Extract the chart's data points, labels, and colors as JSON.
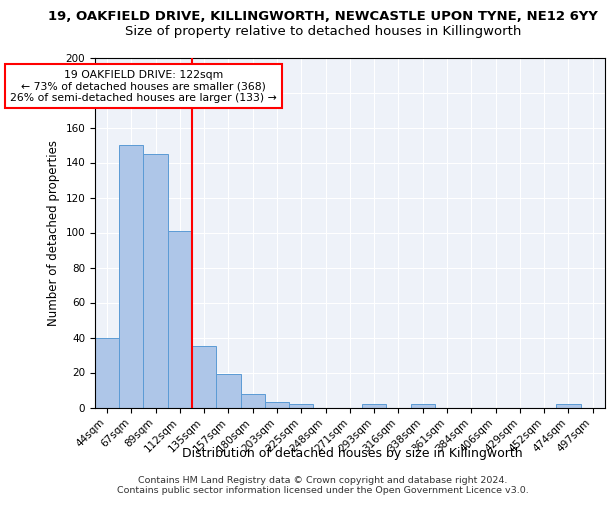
{
  "title1": "19, OAKFIELD DRIVE, KILLINGWORTH, NEWCASTLE UPON TYNE, NE12 6YY",
  "title2": "Size of property relative to detached houses in Killingworth",
  "xlabel": "Distribution of detached houses by size in Killingworth",
  "ylabel": "Number of detached properties",
  "footer": "Contains HM Land Registry data © Crown copyright and database right 2024.\nContains public sector information licensed under the Open Government Licence v3.0.",
  "categories": [
    "44sqm",
    "67sqm",
    "89sqm",
    "112sqm",
    "135sqm",
    "157sqm",
    "180sqm",
    "203sqm",
    "225sqm",
    "248sqm",
    "271sqm",
    "293sqm",
    "316sqm",
    "338sqm",
    "361sqm",
    "384sqm",
    "406sqm",
    "429sqm",
    "452sqm",
    "474sqm",
    "497sqm"
  ],
  "values": [
    40,
    150,
    145,
    101,
    35,
    19,
    8,
    3,
    2,
    0,
    0,
    2,
    0,
    2,
    0,
    0,
    0,
    0,
    0,
    2,
    0
  ],
  "bar_color": "#aec6e8",
  "bar_edge_color": "#5b9bd5",
  "vline_x": 3.5,
  "vline_color": "red",
  "annotation_line1": "19 OAKFIELD DRIVE: 122sqm",
  "annotation_line2": "← 73% of detached houses are smaller (368)",
  "annotation_line3": "26% of semi-detached houses are larger (133) →",
  "annotation_box_color": "white",
  "annotation_box_edge": "red",
  "ylim": [
    0,
    200
  ],
  "yticks": [
    0,
    20,
    40,
    60,
    80,
    100,
    120,
    140,
    160,
    180,
    200
  ],
  "bg_color": "#eef2f9",
  "title1_fontsize": 9.5,
  "title2_fontsize": 9.5,
  "xlabel_fontsize": 9,
  "ylabel_fontsize": 8.5,
  "tick_fontsize": 7.5,
  "footer_fontsize": 6.8,
  "ann_fontsize": 7.8
}
